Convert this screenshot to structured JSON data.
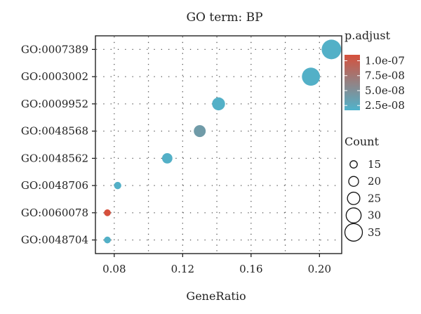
{
  "chart_data": {
    "type": "scatter",
    "title": "GO term: BP",
    "xlabel": "GeneRatio",
    "ylabel": "",
    "xlim": [
      0.069,
      0.213
    ],
    "xticks": [
      0.08,
      0.12,
      0.16,
      0.2
    ],
    "xtick_labels": [
      "0.08",
      "0.12",
      "0.16",
      "0.20"
    ],
    "grid": "dotted",
    "categories": [
      "GO:0007389",
      "GO:0003002",
      "GO:0009952",
      "GO:0048568",
      "GO:0048562",
      "GO:0048706",
      "GO:0060078",
      "GO:0048704"
    ],
    "points": [
      {
        "term": "GO:0007389",
        "gene_ratio": 0.207,
        "count": 39,
        "p_adjust": 2e-08
      },
      {
        "term": "GO:0003002",
        "gene_ratio": 0.195,
        "count": 36,
        "p_adjust": 2e-08
      },
      {
        "term": "GO:0009952",
        "gene_ratio": 0.141,
        "count": 26,
        "p_adjust": 2e-08
      },
      {
        "term": "GO:0048568",
        "gene_ratio": 0.13,
        "count": 24,
        "p_adjust": 4e-08
      },
      {
        "term": "GO:0048562",
        "gene_ratio": 0.111,
        "count": 21,
        "p_adjust": 2e-08
      },
      {
        "term": "GO:0048706",
        "gene_ratio": 0.082,
        "count": 15,
        "p_adjust": 2e-08
      },
      {
        "term": "GO:0060078",
        "gene_ratio": 0.076,
        "count": 14,
        "p_adjust": 1.1e-07
      },
      {
        "term": "GO:0048704",
        "gene_ratio": 0.076,
        "count": 14,
        "p_adjust": 2e-08
      }
    ],
    "color_legend": {
      "title": "p.adjust",
      "min": 1.7e-08,
      "max": 1.1e-07,
      "ticks": [
        1e-07,
        7.5e-08,
        5e-08,
        2.5e-08
      ],
      "tick_labels": [
        "1.0e-07",
        "7.5e-08",
        "5.0e-08",
        "2.5e-08"
      ],
      "color_low": "#4fb3cc",
      "color_high": "#d6503c"
    },
    "size_legend": {
      "title": "Count",
      "values": [
        15,
        20,
        25,
        30,
        35
      ],
      "labels": [
        "15",
        "20",
        "25",
        "30",
        "35"
      ]
    },
    "legend_position": "right"
  }
}
